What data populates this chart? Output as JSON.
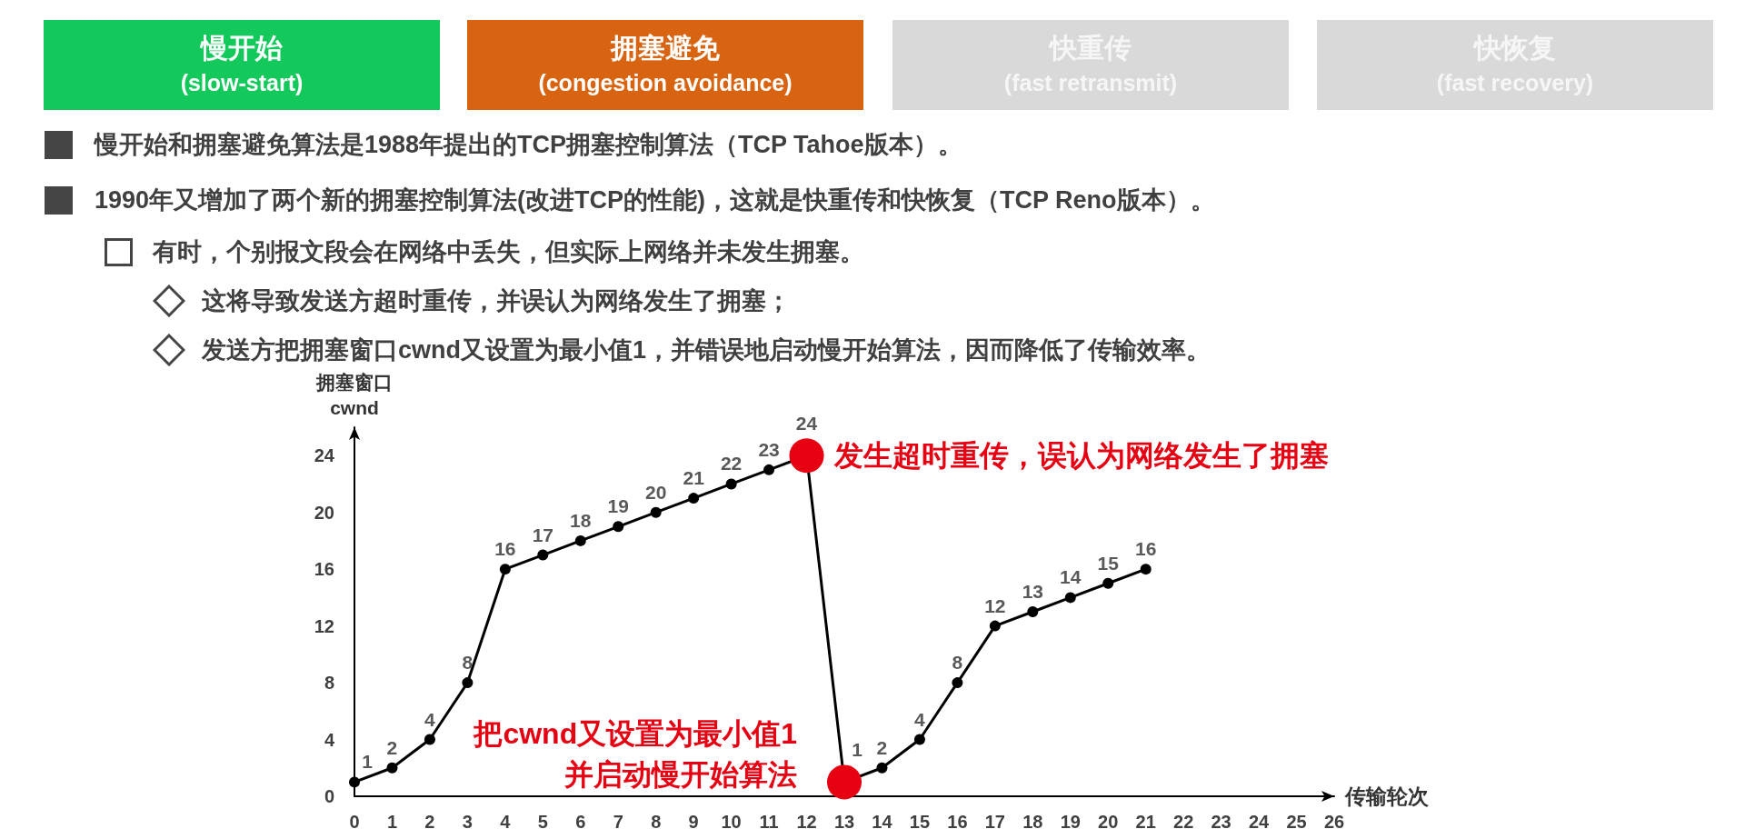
{
  "chart_data": {
    "type": "line",
    "annotations": [
      "慢开始\n(slow-start)",
      "拥塞避免\n(congestion avoidance)",
      "快重传\n(fast retransmit)",
      "快恢复\n(fast recovery)",
      "慢开始和拥塞避免算法是1988年提出的TCP拥塞控制算法（TCP Tahoe版本）。",
      "1990年又增加了两个新的拥塞控制算法(改进TCP的性能)，这就是快重传和快恢复（TCP Reno版本）。",
      "有时，个别报文段会在网络中丢失，但实际上网络并未发生拥塞。",
      "这将导致发送方超时重传，并误认为网络发生了拥塞；",
      "发送方把拥塞窗口cwnd又设置为最小值1，并错误地启动慢开始算法，因而降低了传输效率。",
      {
        "text": "发生超时重传，误认为网络发生了拥塞",
        "x": 12,
        "y": 24
      },
      {
        "text": "把cwnd又设置为最小值1\n并启动慢开始算法",
        "x": 13,
        "y": 1
      }
    ],
    "xlabel": "传输轮次",
    "ylabel": "拥塞窗口\ncwnd",
    "x": [
      0,
      1,
      2,
      3,
      4,
      5,
      6,
      7,
      8,
      9,
      10,
      11,
      12,
      13,
      14,
      15,
      16,
      17,
      18,
      19,
      20,
      21
    ],
    "values": [
      1,
      2,
      4,
      8,
      16,
      17,
      18,
      19,
      20,
      21,
      22,
      23,
      24,
      1,
      2,
      4,
      8,
      12,
      13,
      14,
      15,
      16
    ],
    "color": "#000000",
    "colors": [
      "#000000",
      "#000000",
      "#000000",
      "#000000",
      "#000000",
      "#000000",
      "#000000",
      "#000000",
      "#000000",
      "#000000",
      "#000000",
      "#000000",
      "#e60012",
      "#e60012",
      "#000000",
      "#000000",
      "#000000",
      "#000000",
      "#000000",
      "#000000",
      "#000000",
      "#000000"
    ],
    "xlim": [
      0,
      26
    ],
    "xticks": [
      0,
      1,
      2,
      3,
      4,
      5,
      6,
      7,
      8,
      9,
      10,
      11,
      12,
      13,
      14,
      15,
      16,
      17,
      18,
      19,
      20,
      21,
      22,
      23,
      24,
      25,
      26
    ],
    "ylim": [
      0,
      26
    ],
    "yticks": [
      0,
      4,
      8,
      12,
      16,
      20,
      24
    ],
    "grid": false,
    "marker": "circle",
    "line_style": "solid",
    "data_labels": true
  }
}
